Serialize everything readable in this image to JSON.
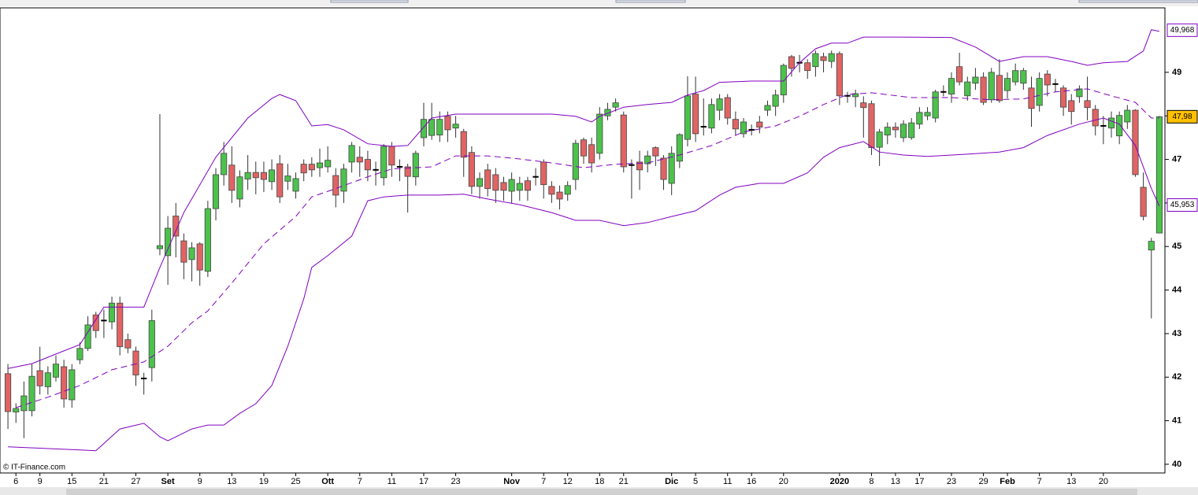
{
  "chart_data": {
    "type": "candlestick",
    "watermark": "© IT-Finance.com",
    "up_color": "#4cc24c",
    "down_color": "#e06464",
    "doji_color": "#000000",
    "ylim": [
      39.8,
      50.48
    ],
    "yticks": [
      40,
      41,
      42,
      43,
      44,
      45,
      46,
      47,
      48,
      49
    ],
    "categories": [
      null,
      "6",
      null,
      null,
      "9",
      null,
      null,
      null,
      "15",
      null,
      null,
      null,
      "21",
      null,
      null,
      null,
      "27",
      null,
      null,
      null,
      "Set",
      null,
      null,
      null,
      "9",
      null,
      null,
      null,
      "13",
      null,
      null,
      null,
      "19",
      null,
      null,
      null,
      "25",
      null,
      null,
      null,
      "Ott",
      null,
      null,
      null,
      "7",
      null,
      null,
      null,
      "11",
      null,
      null,
      null,
      "17",
      null,
      null,
      null,
      "23",
      null,
      null,
      null,
      null,
      null,
      null,
      "Nov",
      null,
      null,
      null,
      "7",
      null,
      null,
      "12",
      null,
      null,
      null,
      "18",
      null,
      null,
      "21",
      null,
      null,
      null,
      null,
      null,
      "Dic",
      null,
      null,
      "5",
      null,
      null,
      null,
      "11",
      null,
      null,
      "16",
      null,
      null,
      null,
      "20",
      null,
      null,
      null,
      null,
      null,
      null,
      "2020",
      null,
      null,
      null,
      "8",
      null,
      null,
      "13",
      null,
      null,
      "17",
      null,
      null,
      null,
      "23",
      null,
      null,
      null,
      "29",
      null,
      null,
      "Feb",
      null,
      null,
      null,
      "7",
      null,
      null,
      null,
      "13",
      null,
      null,
      null,
      "20",
      null,
      null,
      null,
      null,
      null,
      null,
      null
    ],
    "open": [
      42.08,
      41.2,
      41.23,
      41.23,
      42.15,
      41.78,
      42.0,
      42.24,
      41.48,
      42.4,
      42.66,
      43.43,
      43.3,
      43.27,
      43.7,
      42.86,
      42.6,
      41.97,
      42.22,
      44.95,
      44.79,
      45.7,
      45.13,
      44.7,
      45.06,
      44.43,
      45.87,
      46.65,
      46.87,
      46.09,
      46.55,
      46.7,
      46.7,
      46.49,
      46.9,
      46.5,
      46.27,
      46.89,
      46.89,
      46.81,
      46.83,
      46.63,
      46.27,
      46.94,
      47.05,
      47.0,
      46.76,
      46.58,
      47.3,
      46.83,
      46.83,
      46.6,
      47.5,
      47.55,
      47.56,
      47.99,
      47.72,
      47.64,
      47.16,
      46.38,
      46.76,
      46.65,
      46.47,
      46.27,
      46.29,
      46.51,
      46.6,
      46.94,
      46.38,
      46.25,
      46.2,
      46.54,
      47.45,
      47.34,
      47.14,
      48.0,
      48.2,
      48.02,
      46.87,
      46.94,
      46.9,
      47.27,
      47.03,
      46.45,
      46.96,
      47.46,
      48.5,
      47.75,
      47.72,
      48.13,
      48.42,
      47.92,
      47.59,
      47.68,
      47.86,
      48.13,
      48.22,
      48.48,
      49.36,
      49.22,
      49.22,
      49.13,
      49.36,
      49.25,
      49.43,
      48.46,
      48.44,
      48.3,
      48.28,
      47.28,
      47.56,
      47.74,
      47.5,
      47.5,
      47.81,
      48.0,
      47.95,
      48.55,
      48.5,
      49.13,
      48.46,
      48.75,
      48.89,
      48.37,
      48.93,
      48.58,
      48.78,
      48.75,
      48.64,
      48.24,
      48.96,
      48.73,
      48.64,
      48.35,
      48.44,
      48.35,
      48.15,
      47.77,
      47.72,
      47.54,
      47.86,
      48.13,
      46.36,
      44.92,
      45.31
    ],
    "high": [
      42.3,
      41.4,
      41.9,
      42.3,
      42.7,
      42.25,
      42.5,
      42.4,
      42.3,
      42.8,
      43.4,
      43.5,
      43.55,
      43.85,
      43.85,
      43.0,
      42.7,
      42.1,
      43.55,
      48.04,
      45.7,
      46.0,
      45.3,
      45.1,
      45.1,
      46.05,
      46.8,
      47.4,
      47.3,
      46.75,
      47.1,
      46.95,
      46.95,
      47.0,
      47.1,
      46.9,
      46.7,
      47.0,
      47.05,
      47.25,
      47.3,
      46.8,
      46.9,
      47.4,
      47.3,
      47.2,
      46.95,
      47.35,
      47.4,
      47.0,
      46.9,
      47.2,
      48.3,
      48.3,
      48.1,
      48.1,
      48.0,
      47.7,
      47.3,
      46.7,
      46.9,
      46.8,
      46.6,
      46.7,
      46.6,
      46.6,
      46.8,
      47.0,
      46.5,
      46.4,
      46.5,
      47.45,
      47.5,
      47.5,
      48.2,
      48.3,
      48.4,
      48.1,
      47.0,
      47.2,
      47.2,
      47.3,
      47.1,
      47.3,
      47.6,
      48.91,
      48.9,
      48.4,
      48.4,
      48.5,
      48.5,
      48.1,
      47.95,
      47.8,
      48.0,
      48.35,
      48.6,
      49.2,
      49.4,
      49.4,
      49.3,
      49.5,
      49.45,
      49.5,
      49.48,
      48.55,
      48.6,
      48.45,
      48.35,
      47.7,
      47.85,
      47.85,
      47.9,
      47.95,
      48.2,
      48.2,
      48.6,
      48.7,
      49.0,
      49.45,
      48.9,
      49.1,
      49.0,
      49.1,
      49.3,
      49.0,
      49.2,
      49.1,
      48.9,
      49.0,
      49.05,
      48.85,
      48.7,
      48.5,
      48.7,
      48.9,
      48.25,
      48.0,
      48.1,
      48.1,
      48.25,
      48.15,
      46.7,
      45.2,
      48.0
    ],
    "low": [
      40.81,
      40.95,
      40.6,
      41.1,
      41.6,
      41.6,
      41.9,
      41.3,
      41.3,
      42.3,
      42.6,
      42.9,
      42.9,
      43.1,
      42.5,
      42.55,
      41.8,
      41.6,
      41.9,
      44.8,
      44.12,
      44.75,
      44.25,
      44.2,
      44.1,
      44.3,
      45.6,
      46.4,
      46.0,
      45.9,
      46.3,
      46.2,
      46.25,
      46.3,
      46.0,
      46.3,
      46.1,
      46.5,
      46.6,
      46.6,
      46.7,
      45.9,
      46.0,
      46.7,
      46.6,
      46.5,
      46.4,
      46.4,
      46.6,
      46.5,
      45.78,
      46.4,
      47.3,
      47.45,
      47.4,
      47.4,
      47.5,
      46.6,
      46.2,
      46.1,
      46.15,
      46.0,
      46.05,
      46.0,
      46.05,
      46.05,
      46.4,
      46.1,
      46.0,
      45.85,
      46.05,
      46.3,
      46.9,
      46.7,
      47.0,
      47.9,
      48.1,
      46.7,
      46.1,
      46.3,
      46.7,
      46.85,
      46.3,
      46.18,
      46.8,
      47.3,
      47.4,
      47.55,
      47.6,
      47.9,
      47.8,
      47.55,
      47.5,
      47.55,
      47.6,
      48.0,
      48.0,
      48.3,
      48.9,
      49.0,
      48.85,
      48.9,
      49.0,
      49.1,
      48.25,
      48.3,
      48.2,
      47.5,
      47.1,
      46.85,
      47.35,
      47.5,
      47.4,
      47.45,
      47.7,
      47.9,
      47.85,
      48.45,
      48.3,
      48.7,
      48.35,
      48.6,
      48.25,
      48.3,
      48.3,
      48.4,
      48.7,
      48.6,
      47.75,
      48.1,
      48.45,
      48.55,
      48.0,
      47.8,
      48.3,
      47.9,
      47.55,
      47.35,
      47.5,
      47.35,
      47.7,
      46.6,
      45.6,
      43.35,
      45.3
    ],
    "close": [
      41.21,
      41.28,
      41.57,
      42.02,
      41.8,
      42.1,
      42.3,
      41.5,
      42.17,
      42.66,
      43.2,
      43.07,
      43.3,
      43.7,
      42.7,
      42.67,
      42.05,
      41.97,
      43.3,
      45.02,
      45.42,
      45.24,
      44.64,
      44.97,
      44.46,
      45.87,
      46.65,
      47.14,
      46.29,
      46.6,
      46.7,
      46.58,
      46.54,
      46.76,
      46.14,
      46.62,
      46.56,
      46.69,
      46.76,
      46.92,
      46.98,
      46.18,
      46.78,
      47.32,
      46.94,
      46.76,
      46.76,
      47.3,
      46.87,
      46.83,
      46.61,
      47.14,
      47.92,
      47.92,
      47.92,
      47.68,
      47.81,
      47.05,
      46.38,
      46.56,
      46.33,
      46.29,
      46.29,
      46.54,
      46.45,
      46.29,
      46.6,
      46.42,
      46.2,
      46.09,
      46.4,
      47.37,
      47.08,
      46.92,
      48.04,
      48.15,
      48.3,
      46.83,
      46.87,
      46.76,
      47.08,
      47.08,
      46.54,
      47.14,
      47.57,
      48.46,
      47.59,
      47.75,
      48.26,
      48.39,
      47.95,
      47.7,
      47.86,
      47.68,
      47.74,
      48.24,
      48.48,
      49.16,
      49.09,
      49.22,
      49.04,
      49.43,
      49.27,
      49.43,
      48.46,
      48.46,
      48.51,
      48.19,
      47.27,
      47.63,
      47.74,
      47.68,
      47.81,
      47.84,
      48.08,
      48.08,
      48.55,
      48.55,
      48.86,
      48.78,
      48.78,
      48.89,
      48.31,
      49.0,
      48.35,
      48.86,
      49.04,
      49.04,
      48.17,
      48.86,
      48.71,
      48.73,
      48.2,
      48.1,
      48.62,
      48.19,
      47.77,
      47.77,
      47.95,
      48.01,
      48.13,
      46.65,
      45.69,
      45.12,
      47.98
    ],
    "overlays": [
      {
        "color": "#8000c0",
        "dash": false,
        "x": [
          0,
          3,
          6,
          9,
          12,
          14,
          17,
          19,
          22,
          26,
          30,
          33,
          34,
          36,
          38,
          40,
          42,
          45,
          48,
          50,
          53,
          56,
          63,
          68,
          71,
          73,
          74,
          77,
          80,
          83,
          85,
          87,
          89,
          93,
          97,
          99,
          101,
          103,
          105,
          107,
          111,
          118,
          121,
          124,
          127,
          130,
          133,
          135,
          137,
          140,
          142,
          143,
          144
        ],
        "values": [
          42.2,
          42.31,
          42.53,
          42.75,
          43.61,
          43.61,
          43.61,
          44.52,
          45.78,
          47.05,
          47.95,
          48.4,
          48.49,
          48.35,
          47.77,
          47.8,
          47.68,
          47.36,
          47.3,
          47.32,
          47.95,
          48.04,
          48.04,
          48.04,
          47.99,
          47.86,
          47.99,
          48.2,
          48.26,
          48.31,
          48.48,
          48.58,
          48.77,
          48.8,
          48.8,
          49.22,
          49.54,
          49.67,
          49.67,
          49.81,
          49.81,
          49.8,
          49.58,
          49.25,
          49.36,
          49.36,
          49.25,
          49.16,
          49.22,
          49.25,
          49.49,
          49.98,
          49.94
        ]
      },
      {
        "color": "#8000c0",
        "dash": true,
        "x": [
          1,
          5,
          9,
          13,
          17,
          20,
          23,
          25,
          28,
          32,
          36,
          38,
          41,
          45,
          48,
          53,
          56,
          60,
          64,
          68,
          72,
          76,
          80,
          84,
          88,
          92,
          96,
          99,
          102,
          105,
          108,
          113,
          118,
          123,
          127,
          131,
          135,
          138,
          141,
          143,
          144
        ],
        "values": [
          41.3,
          41.54,
          41.81,
          42.17,
          42.35,
          42.71,
          43.25,
          43.52,
          44.16,
          45.06,
          45.69,
          46.14,
          46.33,
          46.6,
          46.78,
          46.83,
          47.08,
          47.08,
          47.01,
          46.92,
          46.81,
          46.89,
          46.92,
          47.1,
          47.32,
          47.63,
          47.77,
          47.99,
          48.26,
          48.49,
          48.53,
          48.42,
          48.42,
          48.37,
          48.39,
          48.55,
          48.62,
          48.46,
          48.31,
          47.95,
          47.95
        ]
      },
      {
        "color": "#8000c0",
        "dash": false,
        "x": [
          0,
          9,
          11,
          14,
          17,
          19,
          20,
          23,
          25,
          27,
          29,
          31,
          33,
          35,
          37,
          38,
          40,
          43,
          45,
          47,
          50,
          54,
          57,
          60,
          64,
          68,
          71,
          74,
          77,
          80,
          83,
          86,
          89,
          91,
          94,
          97,
          100,
          102,
          104,
          107,
          109,
          112,
          115,
          120,
          124,
          127,
          130,
          134,
          137,
          139,
          141,
          143,
          144
        ],
        "values": [
          40.4,
          40.33,
          40.31,
          40.81,
          40.94,
          40.63,
          40.54,
          40.81,
          40.9,
          40.9,
          41.17,
          41.39,
          41.81,
          42.71,
          43.8,
          44.52,
          44.79,
          45.24,
          46.05,
          46.14,
          46.18,
          46.18,
          46.2,
          46.09,
          45.96,
          45.78,
          45.6,
          45.6,
          45.48,
          45.55,
          45.69,
          45.82,
          46.18,
          46.36,
          46.45,
          46.45,
          46.69,
          47.05,
          47.27,
          47.41,
          47.17,
          47.1,
          47.07,
          47.12,
          47.17,
          47.27,
          47.55,
          47.81,
          47.95,
          47.81,
          47.32,
          46.33,
          45.93
        ]
      }
    ],
    "price_labels": [
      {
        "value": 49.968,
        "label": "49,968",
        "color": "#8000c0",
        "background": "#ffffff"
      },
      {
        "value": 47.98,
        "label": "47,98",
        "color": "#000000",
        "background": "#ffc000"
      },
      {
        "value": 45.953,
        "label": "45,953",
        "color": "#8000c0",
        "background": "#ffffff"
      }
    ]
  }
}
